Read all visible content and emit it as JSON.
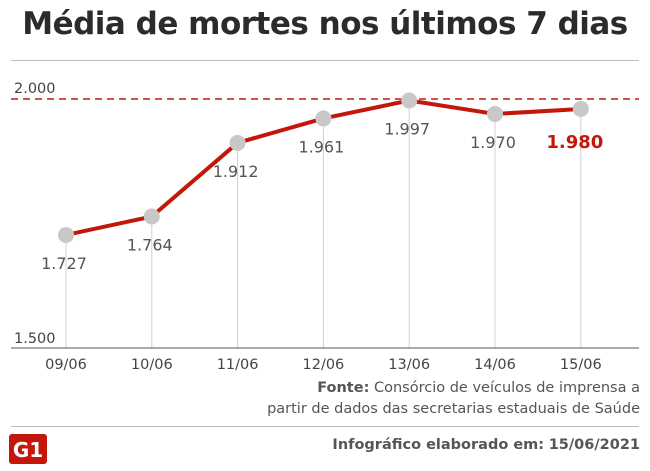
{
  "title": "Média de mortes nos últimos 7 dias",
  "source": {
    "label": "Fonte:",
    "line1": "Consórcio de veículos de imprensa a",
    "line2": "partir de dados das secretarias estaduais de Saúde"
  },
  "credit": {
    "label": "Infográfico elaborado em:",
    "date": "15/06/2021"
  },
  "logo": {
    "text": "G1",
    "color": "#c4170c"
  },
  "colors": {
    "line": "#c4170c",
    "marker": "#c8c8c8",
    "reference": "#c4170c",
    "highlight": "#c4170c"
  },
  "chart_data": {
    "type": "line",
    "title": "Média de mortes nos últimos 7 dias",
    "categories": [
      "09/06",
      "10/06",
      "11/06",
      "12/06",
      "13/06",
      "14/06",
      "15/06"
    ],
    "values": [
      1727,
      1764,
      1912,
      1961,
      1997,
      1970,
      1980
    ],
    "data_labels": [
      "1.727",
      "1.764",
      "1.912",
      "1.961",
      "1.997",
      "1.970",
      "1.980"
    ],
    "highlight_index": 6,
    "ylim": [
      1500,
      2000
    ],
    "y_tick_labels": [
      {
        "value": 2000,
        "label": "2.000"
      },
      {
        "value": 1500,
        "label": "1.500"
      }
    ],
    "reference_line": {
      "value": 2000,
      "style": "dashed"
    },
    "grid": "vertical drop lines",
    "legend": "none"
  }
}
